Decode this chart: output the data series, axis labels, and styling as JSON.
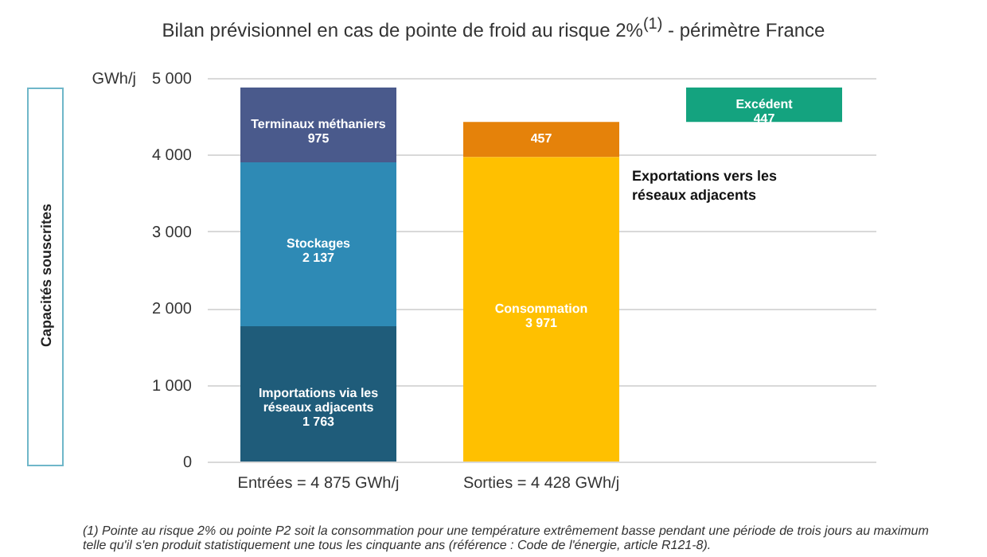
{
  "chart_data": {
    "type": "bar",
    "title": "Bilan prévisionnel en cas de pointe de froid au risque 2%$^{(1)}$ - périmètre France",
    "ylabel": "GWh/j",
    "categories": [
      "Entrées = 4 875 GWh/j",
      "Sorties = 4 428 GWh/j",
      null
    ],
    "stacked": true,
    "series": [
      {
        "name": "Importations via les réseaux adjacents",
        "color": "#1f5c7a",
        "values": [
          1763,
          null,
          null
        ],
        "value_labels": [
          "1 763",
          null,
          null
        ]
      },
      {
        "name": "Stockages",
        "color": "#2e8ab5",
        "values": [
          2137,
          null,
          null
        ],
        "value_labels": [
          "2 137",
          null,
          null
        ]
      },
      {
        "name": "Terminaux méthaniers",
        "color": "#4a5a8c",
        "values": [
          975,
          null,
          null
        ],
        "value_labels": [
          "975",
          null,
          null
        ]
      },
      {
        "name": "Consommation",
        "color": "#ffc000",
        "values": [
          null,
          3971,
          null
        ],
        "value_labels": [
          null,
          "3 971",
          null
        ]
      },
      {
        "name": "Exportations vers les réseaux adjacents",
        "color": "#e5820a",
        "values": [
          null,
          457,
          null
        ],
        "value_labels": [
          null,
          "457",
          null
        ]
      },
      {
        "name": "Excédent",
        "color": "#14a37f",
        "values": [
          null,
          null,
          447
        ],
        "base": [
          null,
          null,
          4428
        ],
        "value_labels": [
          null,
          null,
          "447"
        ]
      }
    ],
    "ylim": [
      0,
      5000
    ],
    "yticks": [
      0,
      {
        "value": 1000,
        "label": "1 000"
      },
      {
        "value": 2000,
        "label": "2 000"
      },
      {
        "value": 3000,
        "label": "3 000"
      },
      {
        "value": 4000,
        "label": "4 000"
      },
      {
        "value": 5000,
        "label": "5 000"
      }
    ],
    "grid": "y",
    "legend": false,
    "annotations": [
      "Capacités souscrites",
      "(1) Pointe au risque 2% ou pointe P2 soit la consommation pour une température extrêmement basse pendant une période de trois jours au maximum telle qu'il s'en produit statistiquement une tous les cinquante ans (référence : Code de l'énergie, article R121-8)."
    ]
  }
}
